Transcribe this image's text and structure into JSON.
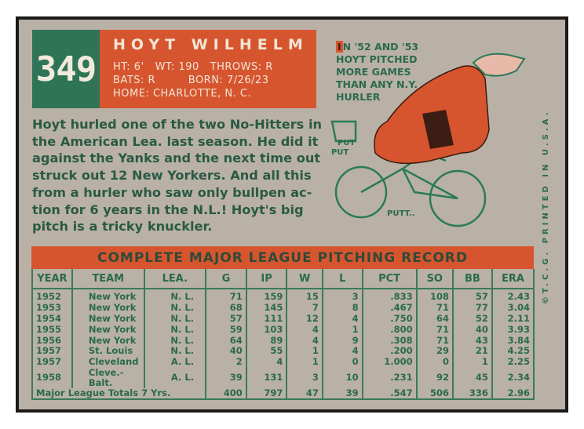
{
  "card_number": "349",
  "player": {
    "name": "HOYT WILHELM",
    "ht": "HT: 6'",
    "wt": "WT: 190",
    "throws": "THROWS: R",
    "bats": "BATS: R",
    "born": "BORN: 7/26/23",
    "home": "HOME: CHARLOTTE, N. C."
  },
  "bio": [
    "Hoyt hurled one of the two No-Hitters in",
    "the American Lea. last season. He did it",
    "against the Yanks and the next time out",
    "struck out 12 New Yorkers. And all this",
    "from a hurler who saw only bullpen ac-",
    "tion for 6 years in the N.L.!  Hoyt's big",
    "pitch is a tricky knuckler."
  ],
  "cartoon": {
    "caption": [
      "N '52 AND '53",
      "HOYT PITCHED",
      "MORE GAMES",
      "THAN ANY N.Y.",
      "HURLER"
    ],
    "initial": "I",
    "sfx": [
      "PUT",
      "PUT",
      "PUTT.."
    ]
  },
  "printed": "©T.C.G.  PRINTED IN U.S.A.",
  "table": {
    "title": "COMPLETE MAJOR LEAGUE PITCHING RECORD",
    "headers": [
      "YEAR",
      "TEAM",
      "LEA.",
      "G",
      "IP",
      "W",
      "L",
      "PCT",
      "SO",
      "BB",
      "ERA"
    ],
    "rows": [
      [
        "1952",
        "New York",
        "N. L.",
        "71",
        "159",
        "15",
        "3",
        ".833",
        "108",
        "57",
        "2.43"
      ],
      [
        "1953",
        "New York",
        "N. L.",
        "68",
        "145",
        "7",
        "8",
        ".467",
        "71",
        "77",
        "3.04"
      ],
      [
        "1954",
        "New York",
        "N. L.",
        "57",
        "111",
        "12",
        "4",
        ".750",
        "64",
        "52",
        "2.11"
      ],
      [
        "1955",
        "New York",
        "N. L.",
        "59",
        "103",
        "4",
        "1",
        ".800",
        "71",
        "40",
        "3.93"
      ],
      [
        "1956",
        "New York",
        "N. L.",
        "64",
        "89",
        "4",
        "9",
        ".308",
        "71",
        "43",
        "3.84"
      ],
      [
        "1957",
        "St. Louis",
        "N. L.",
        "40",
        "55",
        "1",
        "4",
        ".200",
        "29",
        "21",
        "4.25"
      ],
      [
        "1957",
        "Cleveland",
        "A. L.",
        "2",
        "4",
        "1",
        "0",
        "1.000",
        "0",
        "1",
        "2.25"
      ],
      [
        "1958",
        "Cleve.-Balt.",
        "A. L.",
        "39",
        "131",
        "3",
        "10",
        ".231",
        "92",
        "45",
        "2.34"
      ]
    ],
    "totals": {
      "label": "Major League Totals 7 Yrs.",
      "values": [
        "400",
        "797",
        "47",
        "39",
        ".547",
        "506",
        "336",
        "2.96"
      ]
    }
  },
  "colors": {
    "green": "#2f7457",
    "orange": "#d6552f",
    "card": "#b9b1a6"
  }
}
